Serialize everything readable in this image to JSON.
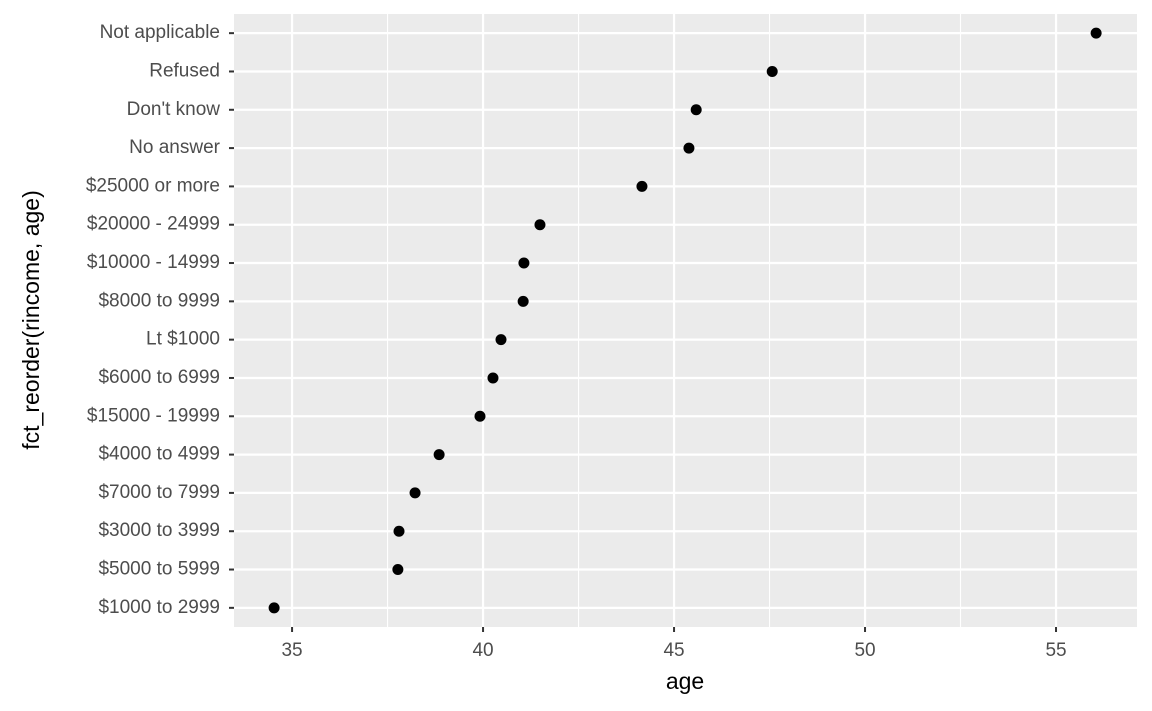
{
  "chart_data": {
    "type": "scatter",
    "x_label": "age",
    "y_label": "fct_reorder(rincome, age)",
    "categories": [
      "$1000 to 2999",
      "$5000 to 5999",
      "$3000 to 3999",
      "$7000 to 7999",
      "$4000 to 4999",
      "$15000 - 19999",
      "$6000 to 6999",
      "Lt $1000",
      "$8000 to 9999",
      "$10000 - 14999",
      "$20000 - 24999",
      "$25000 or more",
      "No answer",
      "Don't know",
      "Refused",
      "Not applicable"
    ],
    "values": [
      34.53,
      37.77,
      37.8,
      38.22,
      38.85,
      39.92,
      40.26,
      40.47,
      41.05,
      41.07,
      41.49,
      44.16,
      45.39,
      45.58,
      47.57,
      56.05
    ],
    "color": "#000000",
    "xlim": [
      33.48,
      57.12
    ],
    "xticks": [
      35,
      40,
      45,
      50,
      55
    ],
    "grid": true
  }
}
